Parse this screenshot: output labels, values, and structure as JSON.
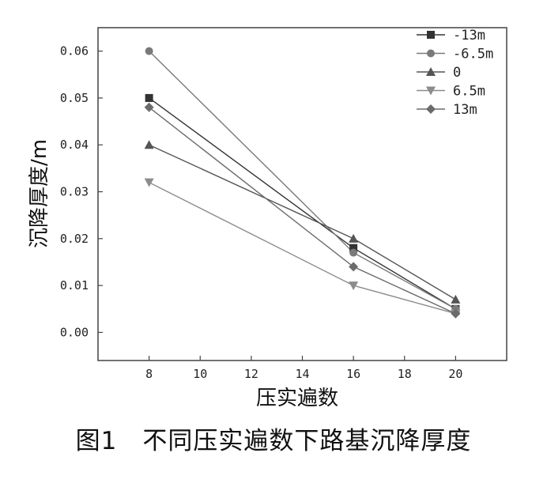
{
  "caption": "图1　不同压实遍数下路基沉降厚度",
  "chart_data": {
    "type": "line",
    "xlabel": "压实遍数",
    "ylabel": "沉降厚度/m",
    "xlim": [
      6,
      22
    ],
    "ylim": [
      -0.006,
      0.065
    ],
    "xticks": [
      8,
      10,
      12,
      14,
      16,
      18,
      20
    ],
    "yticks": [
      0.0,
      0.01,
      0.02,
      0.03,
      0.04,
      0.05,
      0.06
    ],
    "ytick_labels": [
      "0.00",
      "0.01",
      "0.02",
      "0.03",
      "0.04",
      "0.05",
      "0.06"
    ],
    "x": [
      8,
      16,
      20
    ],
    "legend_position": "top-right",
    "grid": false,
    "series": [
      {
        "name": "-13m",
        "values": [
          0.05,
          0.018,
          0.005
        ],
        "marker": "square",
        "color": "#333333"
      },
      {
        "name": "-6.5m",
        "values": [
          0.06,
          0.017,
          0.005
        ],
        "marker": "circle",
        "color": "#7a7a7a"
      },
      {
        "name": "0",
        "values": [
          0.04,
          0.02,
          0.007
        ],
        "marker": "triangle-up",
        "color": "#555555"
      },
      {
        "name": "6.5m",
        "values": [
          0.032,
          0.01,
          0.004
        ],
        "marker": "triangle-down",
        "color": "#8c8c8c"
      },
      {
        "name": "13m",
        "values": [
          0.048,
          0.014,
          0.004
        ],
        "marker": "diamond",
        "color": "#6b6b6b"
      }
    ]
  }
}
